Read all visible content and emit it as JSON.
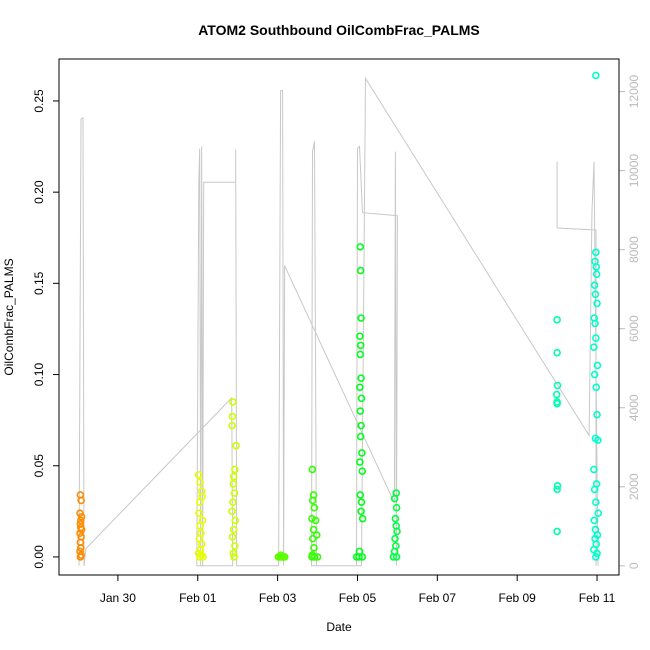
{
  "chart_data": {
    "type": "scatter",
    "title": "ATOM2 Southbound OilCombFrac_PALMS",
    "x_label": "Date",
    "y_label": "OilCombFrac_PALMS",
    "xlim": [
      28.525,
      42.55
    ],
    "ylim": [
      -0.0099,
      0.273
    ],
    "y2lim": [
      -232,
      12824
    ],
    "xticks": [
      {
        "value": 30,
        "label": "Jan 30"
      },
      {
        "value": 32,
        "label": "Feb 01"
      },
      {
        "value": 34,
        "label": "Feb 03"
      },
      {
        "value": 36,
        "label": "Feb 05"
      },
      {
        "value": 38,
        "label": "Feb 07"
      },
      {
        "value": 40,
        "label": "Feb 09"
      },
      {
        "value": 42,
        "label": "Feb 11"
      }
    ],
    "yticks": [
      {
        "value": 0,
        "label": "0.00"
      },
      {
        "value": 0.05,
        "label": "0.05"
      },
      {
        "value": 0.1,
        "label": "0.10"
      },
      {
        "value": 0.15,
        "label": "0.15"
      },
      {
        "value": 0.2,
        "label": "0.20"
      },
      {
        "value": 0.25,
        "label": "0.25"
      }
    ],
    "y2ticks": [
      0,
      2000,
      4000,
      6000,
      8000,
      10000,
      12000
    ],
    "series": [
      {
        "type": "line",
        "axis": "y2",
        "color": "#c8c8c8",
        "x": [
          29.025,
          29.075,
          29.125,
          29.15,
          29.2,
          32.85,
          32.875,
          31.975,
          32.025,
          32.05,
          32.075,
          32.1,
          32.125,
          32.15,
          32.95,
          32.95,
          32.975,
          34.025,
          34.075,
          34.125,
          34.15,
          34.175,
          36.925,
          36.95,
          36.975,
          37.0,
          36.125,
          36.05,
          36.0,
          35.975,
          34.975,
          34.925,
          34.875,
          34.85,
          36.1,
          36.2,
          41.8,
          41.875,
          41.925,
          42.025,
          41.0,
          41.0,
          41.0,
          41.975,
          41.975
        ],
        "values": [
          0,
          11304,
          11330,
          0,
          438,
          4249,
          0,
          0,
          9708,
          10558,
          0,
          10609,
          0,
          9708,
          9708,
          10532,
          0,
          0,
          12025,
          12025,
          0,
          7596,
          1597,
          10480,
          0,
          8858,
          8935,
          10609,
          10558,
          0,
          0,
          10738,
          10480,
          0,
          0,
          12334,
          3300,
          8987,
          10223,
          0,
          null,
          10223,
          8549,
          8498,
          0
        ]
      },
      {
        "color": "#ff8c00",
        "x": [
          29.06,
          29.08,
          29.05,
          29.09,
          29.06,
          29.07,
          29.05,
          29.08,
          29.06,
          29.07,
          29.05,
          29.08,
          29.06,
          29.09,
          29.07
        ],
        "values": [
          0.034,
          0.031,
          0.024,
          0.022,
          0.018,
          0.016,
          0.013,
          0.011,
          0.008,
          0.005,
          0.003,
          0.001,
          0,
          0.015,
          0.02
        ]
      },
      {
        "color": "#e6ff00",
        "x": [
          32.02,
          32.1,
          32.05,
          32.03,
          32.12,
          32.06,
          32.08,
          32.04,
          32.1,
          32.07,
          32.02,
          32.05,
          32.13,
          32.09,
          32.11,
          32.06
        ],
        "values": [
          0.045,
          0.036,
          0.03,
          0.024,
          0.02,
          0.017,
          0.013,
          0.01,
          0.007,
          0.004,
          0.002,
          0,
          0,
          0.001,
          0.033,
          0.041
        ]
      },
      {
        "color": "#ccff00",
        "x": [
          32.88,
          32.87,
          32.86,
          32.96,
          32.93,
          32.9,
          32.89,
          32.92,
          32.88,
          32.86,
          32.94,
          32.9,
          32.87,
          32.93,
          32.89,
          32.91
        ],
        "values": [
          0.085,
          0.077,
          0.072,
          0.061,
          0.048,
          0.044,
          0.04,
          0.035,
          0.03,
          0.025,
          0.02,
          0.015,
          0.011,
          0.006,
          0.002,
          0
        ]
      },
      {
        "color": "#5cff00",
        "x": [
          34.02,
          34.06,
          34.1,
          34.14,
          34.18,
          34.08
        ],
        "values": [
          0,
          0,
          0,
          0,
          0,
          0.001
        ]
      },
      {
        "color": "#33ff00",
        "x": [
          34.87,
          34.9,
          34.88,
          34.92,
          34.86,
          34.95,
          34.9,
          34.88,
          34.91,
          34.87,
          34.86,
          34.93,
          35.0,
          34.98
        ],
        "values": [
          0.048,
          0.034,
          0.031,
          0.027,
          0.021,
          0.02,
          0.015,
          0.01,
          0.005,
          0.001,
          0,
          0,
          0,
          0.012
        ]
      },
      {
        "color": "#00ff1a",
        "x": [
          36.07,
          36.08,
          36.09,
          36.06,
          36.08,
          36.07,
          36.09,
          36.06,
          36.1,
          36.07,
          36.09,
          36.08,
          36.11,
          36.06,
          36.12,
          36.07,
          36.1,
          36.09,
          36.13,
          36.05,
          35.98,
          36.04,
          36.12
        ],
        "values": [
          0.17,
          0.157,
          0.131,
          0.121,
          0.116,
          0.111,
          0.098,
          0.093,
          0.087,
          0.08,
          0.072,
          0.066,
          0.057,
          0.052,
          0.047,
          0.034,
          0.03,
          0.025,
          0.021,
          0.003,
          0,
          0,
          0
        ]
      },
      {
        "color": "#00ff40",
        "x": [
          36.97,
          36.93,
          36.98,
          36.95,
          36.97,
          36.99,
          36.94,
          36.96,
          36.93,
          36.9,
          36.98
        ],
        "values": [
          0.035,
          0.032,
          0.027,
          0.021,
          0.017,
          0.014,
          0.01,
          0.006,
          0.003,
          0,
          0
        ]
      },
      {
        "color": "#00ffb0",
        "x": [
          41.0,
          41.0,
          41.01,
          40.99,
          41.0,
          41.0,
          41.01,
          41.0,
          41.0
        ],
        "values": [
          0.13,
          0.112,
          0.094,
          0.089,
          0.085,
          0.084,
          0.039,
          0.037,
          0.014
        ]
      },
      {
        "color": "#00ffcc",
        "x": [
          41.97,
          41.97,
          41.95,
          41.98,
          41.99,
          41.94,
          41.96,
          42.0,
          41.93,
          41.95,
          41.97,
          41.92,
          42.01,
          41.94,
          41.98,
          42.0,
          41.96,
          42.02,
          41.92,
          41.99,
          41.94,
          41.97,
          42.03,
          41.93,
          41.96,
          42.01,
          41.95,
          41.98,
          41.92,
          42.0,
          41.97
        ],
        "values": [
          0.264,
          0.167,
          0.162,
          0.159,
          0.155,
          0.149,
          0.144,
          0.139,
          0.131,
          0.128,
          0.12,
          0.115,
          0.105,
          0.1,
          0.093,
          0.078,
          0.065,
          0.064,
          0.048,
          0.04,
          0.037,
          0.03,
          0.024,
          0.02,
          0.015,
          0.012,
          0.01,
          0.007,
          0.004,
          0.002,
          0
        ]
      }
    ]
  }
}
